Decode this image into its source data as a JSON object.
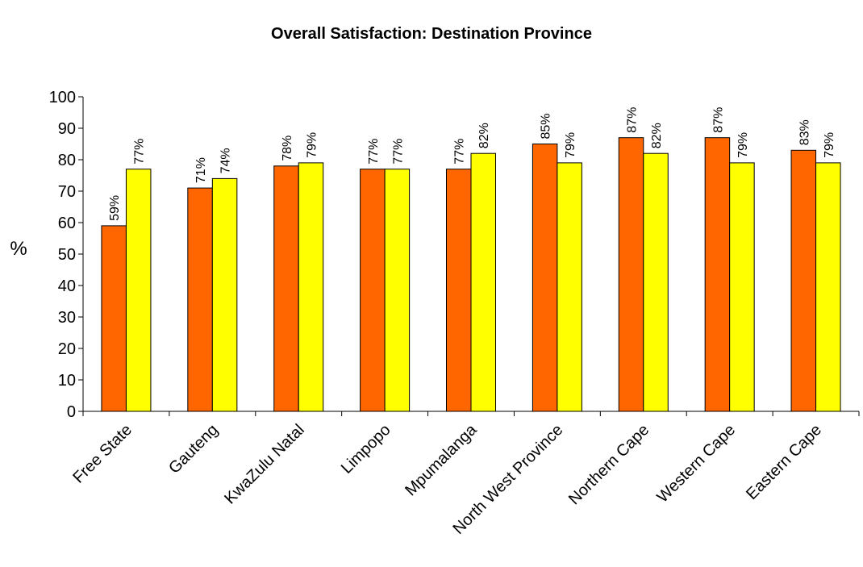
{
  "chart_data": {
    "type": "bar",
    "title": "Overall Satisfaction: Destination Province",
    "xlabel": "",
    "ylabel": "%",
    "ylim": [
      0,
      100
    ],
    "yticks": [
      0,
      10,
      20,
      30,
      40,
      50,
      60,
      70,
      80,
      90,
      100
    ],
    "grid": false,
    "legend": "none",
    "categories": [
      "Free State",
      "Gauteng",
      "KwaZulu Natal",
      "Limpopo",
      "Mpumalanga",
      "North West Province",
      "Northern Cape",
      "Western Cape",
      "Eastern Cape"
    ],
    "series": [
      {
        "color": "#ff6600",
        "values": [
          59,
          71,
          78,
          77,
          77,
          85,
          87,
          87,
          83
        ],
        "labels": [
          "59%",
          "71%",
          "78%",
          "77%",
          "77%",
          "85%",
          "87%",
          "87%",
          "83%"
        ]
      },
      {
        "color": "#ffff00",
        "values": [
          77,
          74,
          79,
          77,
          82,
          79,
          82,
          79,
          79
        ],
        "labels": [
          "77%",
          "74%",
          "79%",
          "77%",
          "82%",
          "79%",
          "82%",
          "79%",
          "79%"
        ]
      }
    ]
  }
}
